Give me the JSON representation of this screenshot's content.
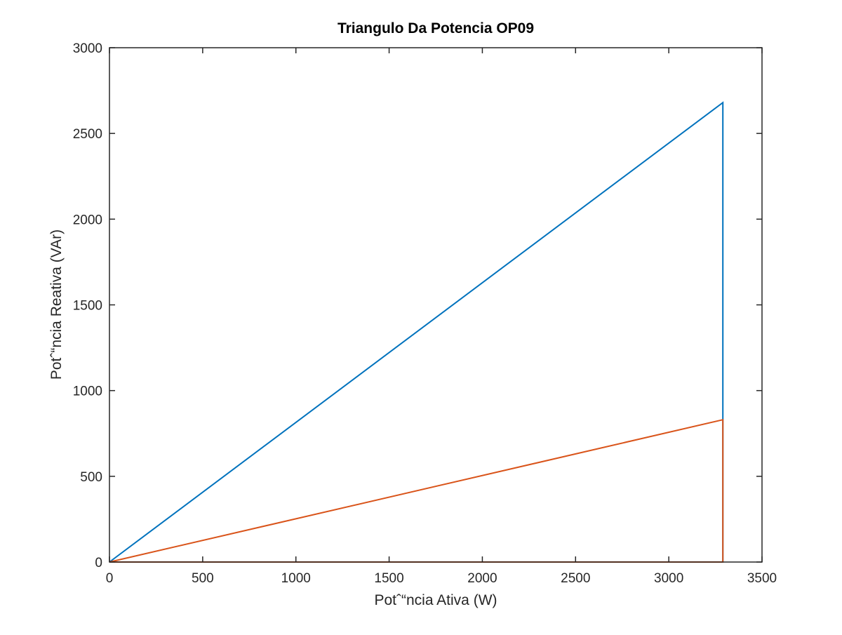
{
  "chart_data": {
    "type": "line",
    "title": "Triangulo Da Potencia OP09",
    "xlabel": "Potˆ“ncia Ativa (W)",
    "ylabel": "Potˆ“ncia Reativa (VAr)",
    "xlim": [
      0,
      3500
    ],
    "ylim": [
      0,
      3000
    ],
    "xticks": [
      0,
      500,
      1000,
      1500,
      2000,
      2500,
      3000,
      3500
    ],
    "yticks": [
      0,
      500,
      1000,
      1500,
      2000,
      2500,
      3000
    ],
    "grid": false,
    "box": true,
    "series": [
      {
        "color": "#0072bd",
        "x": [
          0,
          3290,
          3290,
          0
        ],
        "y": [
          0,
          2680,
          0,
          0
        ]
      },
      {
        "color": "#d95319",
        "x": [
          0,
          3290,
          3290,
          0
        ],
        "y": [
          0,
          830,
          0,
          0
        ]
      }
    ]
  }
}
